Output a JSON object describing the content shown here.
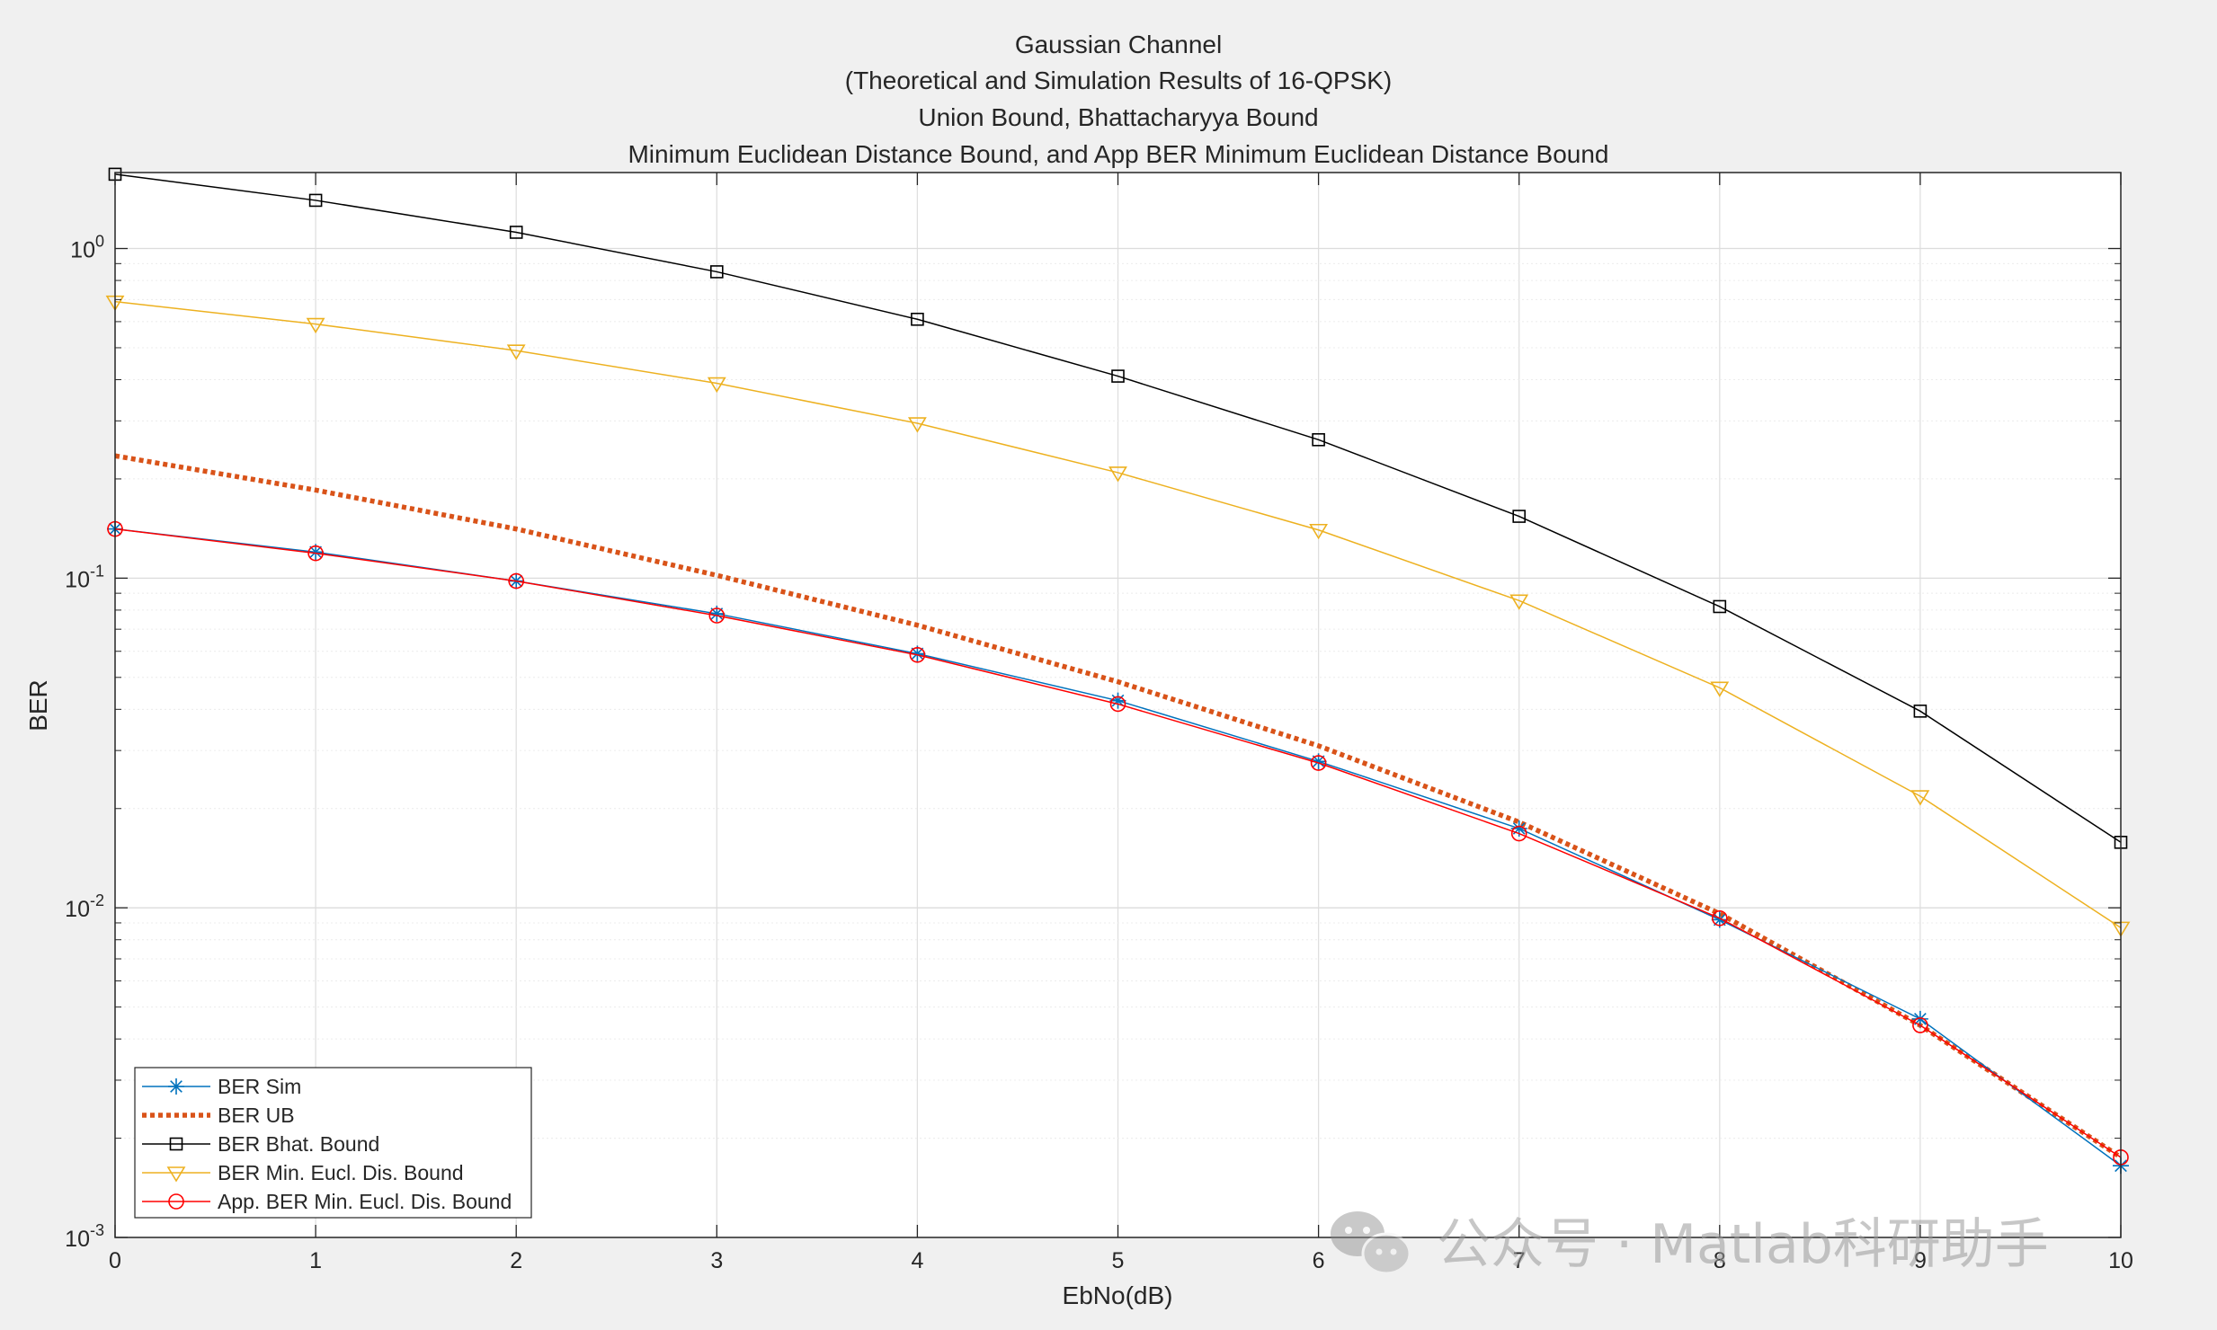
{
  "chart_data": {
    "type": "line",
    "title": [
      "Gaussian Channel",
      "(Theoretical and Simulation Results of 16-QPSK)",
      "Union Bound, Bhattacharyya Bound",
      "Minimum Euclidean Distance Bound, and App BER Minimum Euclidean Distance Bound"
    ],
    "xlabel": "EbNo(dB)",
    "ylabel": "BER",
    "xlim": [
      0,
      10
    ],
    "ylim": [
      0.001,
      1.7
    ],
    "yscale": "log",
    "grid": true,
    "legend_position": "bottom-left",
    "x_ticks": [
      "0",
      "1",
      "2",
      "3",
      "4",
      "5",
      "6",
      "7",
      "8",
      "9",
      "10"
    ],
    "y_ticks": [
      {
        "value": 0.001,
        "base": "10",
        "exp": "-3"
      },
      {
        "value": 0.01,
        "base": "10",
        "exp": "-2"
      },
      {
        "value": 0.1,
        "base": "10",
        "exp": "-1"
      },
      {
        "value": 1,
        "base": "10",
        "exp": "0"
      }
    ],
    "x": [
      0,
      1,
      2,
      3,
      4,
      5,
      6,
      7,
      8,
      9,
      10
    ],
    "series": [
      {
        "name": "BER Sim",
        "color": "#0072BD",
        "marker": "star",
        "line": "solid",
        "values": [
          0.141,
          0.12,
          0.098,
          0.078,
          0.059,
          0.0425,
          0.0278,
          0.0174,
          0.0092,
          0.0046,
          0.00165
        ]
      },
      {
        "name": "BER UB",
        "color": "#D95319",
        "marker": "none",
        "line": "dotted",
        "values": [
          0.235,
          0.185,
          0.141,
          0.102,
          0.072,
          0.0485,
          0.031,
          0.0182,
          0.0096,
          0.0044,
          0.00175
        ]
      },
      {
        "name": "BER Bhat. Bound",
        "color": "#000000",
        "marker": "square",
        "line": "solid",
        "values": [
          1.68,
          1.4,
          1.12,
          0.85,
          0.61,
          0.41,
          0.263,
          0.154,
          0.082,
          0.0395,
          0.0158
        ]
      },
      {
        "name": "BER Min. Eucl. Dis. Bound",
        "color": "#EDB120",
        "marker": "triangle-down",
        "line": "solid",
        "values": [
          0.69,
          0.59,
          0.49,
          0.39,
          0.295,
          0.209,
          0.14,
          0.0855,
          0.0465,
          0.0218,
          0.0087
        ]
      },
      {
        "name": "App. BER Min. Eucl. Dis. Bound",
        "color": "#FF0000",
        "marker": "circle",
        "line": "solid",
        "values": [
          0.141,
          0.119,
          0.098,
          0.077,
          0.0585,
          0.0415,
          0.0275,
          0.0168,
          0.0093,
          0.0044,
          0.00175
        ]
      }
    ]
  },
  "watermark": "公众号 · Matlab科研助手"
}
